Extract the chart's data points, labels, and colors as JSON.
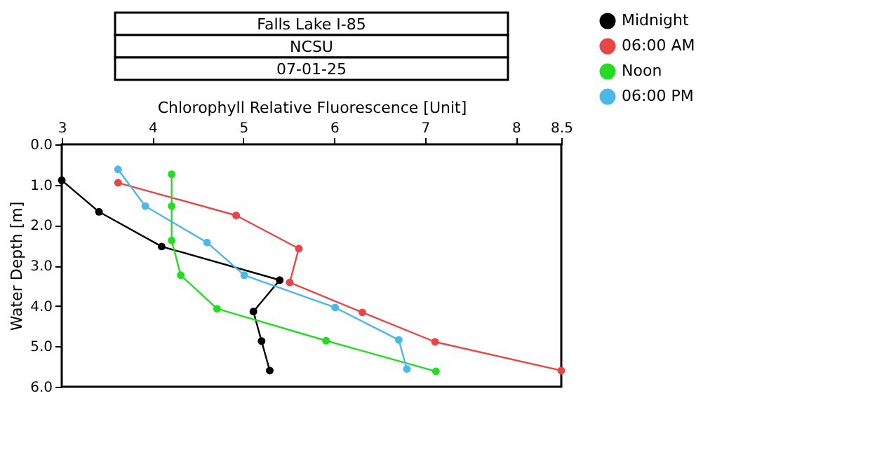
{
  "chart_data": {
    "type": "line",
    "title": "Falls Lake I-85",
    "subtitle": "NCSU",
    "annotations": [
      "07-01-25"
    ],
    "xlabel": "Chlorophyll Relative Fluorescence [Unit]",
    "ylabel": "Water Depth [m]",
    "xlim": [
      3,
      8.5
    ],
    "xticks": [
      3,
      4,
      5,
      6,
      7,
      8,
      {
        "value": 8.5,
        "label": "8.5"
      }
    ],
    "ylim": [
      6,
      0
    ],
    "yticks": [
      {
        "value": 0,
        "label": "0.0"
      },
      {
        "value": 1,
        "label": "1.0"
      },
      {
        "value": 2,
        "label": "2.0"
      },
      {
        "value": 3,
        "label": "3.0"
      },
      {
        "value": 4,
        "label": "4.0"
      },
      {
        "value": 5,
        "label": "5.0"
      },
      {
        "value": 6,
        "label": "6.0"
      }
    ],
    "grid": false,
    "legend": "top right",
    "marker": "circle",
    "line_style": "solid",
    "series": [
      {
        "name": "Midnight",
        "color": "#000000",
        "x": [
          3.0,
          3.41,
          4.1,
          5.4,
          5.11,
          5.2,
          5.29
        ],
        "values": [
          0.89,
          1.67,
          2.53,
          3.36,
          4.14,
          4.87,
          5.6
        ]
      },
      {
        "name": "06:00 AM",
        "color": "#e84646",
        "x": [
          3.62,
          4.92,
          5.61,
          5.51,
          6.31,
          7.11,
          8.5
        ],
        "values": [
          0.95,
          1.76,
          2.58,
          3.42,
          4.16,
          4.89,
          5.6
        ]
      },
      {
        "name": "Noon",
        "color": "#22dd22",
        "x": [
          4.21,
          4.21,
          4.21,
          4.31,
          4.71,
          5.91,
          7.12
        ],
        "values": [
          0.74,
          1.53,
          2.38,
          3.24,
          4.07,
          4.86,
          5.62
        ]
      },
      {
        "name": "06:00 PM",
        "color": "#4cb8ea",
        "x": [
          3.62,
          3.92,
          4.6,
          5.01,
          6.01,
          6.71,
          6.8
        ],
        "values": [
          0.62,
          1.53,
          2.43,
          3.24,
          4.04,
          4.84,
          5.56
        ]
      }
    ]
  }
}
